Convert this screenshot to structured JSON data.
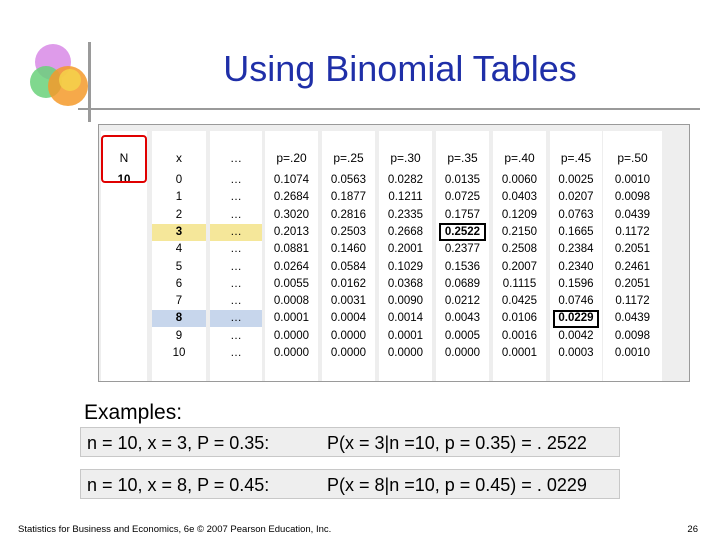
{
  "slide": {
    "title": "Using Binomial Tables",
    "examples_label": "Examples:",
    "footer": "Statistics for Business and Economics, 6e © 2007 Pearson Education, Inc.",
    "page_number": "26"
  },
  "table": {
    "headers": [
      "N",
      "x",
      "…",
      "p=.20",
      "p=.25",
      "p=.30",
      "p=.35",
      "p=.40",
      "p=.45",
      "p=.50"
    ],
    "n_value": "10",
    "x_values": [
      "0",
      "1",
      "2",
      "3",
      "4",
      "5",
      "6",
      "7",
      "8",
      "9",
      "10"
    ],
    "ellipsis": "…",
    "columns": [
      [
        "0.1074",
        "0.2684",
        "0.3020",
        "0.2013",
        "0.0881",
        "0.0264",
        "0.0055",
        "0.0008",
        "0.0001",
        "0.0000",
        "0.0000"
      ],
      [
        "0.0563",
        "0.1877",
        "0.2816",
        "0.2503",
        "0.1460",
        "0.0584",
        "0.0162",
        "0.0031",
        "0.0004",
        "0.0000",
        "0.0000"
      ],
      [
        "0.0282",
        "0.1211",
        "0.2335",
        "0.2668",
        "0.2001",
        "0.1029",
        "0.0368",
        "0.0090",
        "0.0014",
        "0.0001",
        "0.0000"
      ],
      [
        "0.0135",
        "0.0725",
        "0.1757",
        "0.2522",
        "0.2377",
        "0.1536",
        "0.0689",
        "0.0212",
        "0.0043",
        "0.0005",
        "0.0000"
      ],
      [
        "0.0060",
        "0.0403",
        "0.1209",
        "0.2150",
        "0.2508",
        "0.2007",
        "0.1115",
        "0.0425",
        "0.0106",
        "0.0016",
        "0.0001"
      ],
      [
        "0.0025",
        "0.0207",
        "0.0763",
        "0.1665",
        "0.2384",
        "0.2340",
        "0.1596",
        "0.0746",
        "0.0229",
        "0.0042",
        "0.0003"
      ],
      [
        "0.0010",
        "0.0098",
        "0.0439",
        "0.1172",
        "0.2051",
        "0.2461",
        "0.2051",
        "0.1172",
        "0.0439",
        "0.0098",
        "0.0010"
      ]
    ],
    "highlight_color_row_3": "#f5e79a",
    "highlight_color_row_8": "#c7d6ec"
  },
  "examples": [
    {
      "given": "n = 10, x = 3, P = 0.35:",
      "result": "P(x = 3|n =10, p = 0.35) = . 2522"
    },
    {
      "given": "n = 10, x = 8, P = 0.45:",
      "result": "P(x = 8|n =10, p = 0.45) = . 0229"
    }
  ],
  "colors": {
    "title": "#1f2fa8",
    "red_outline": "#e00000"
  }
}
